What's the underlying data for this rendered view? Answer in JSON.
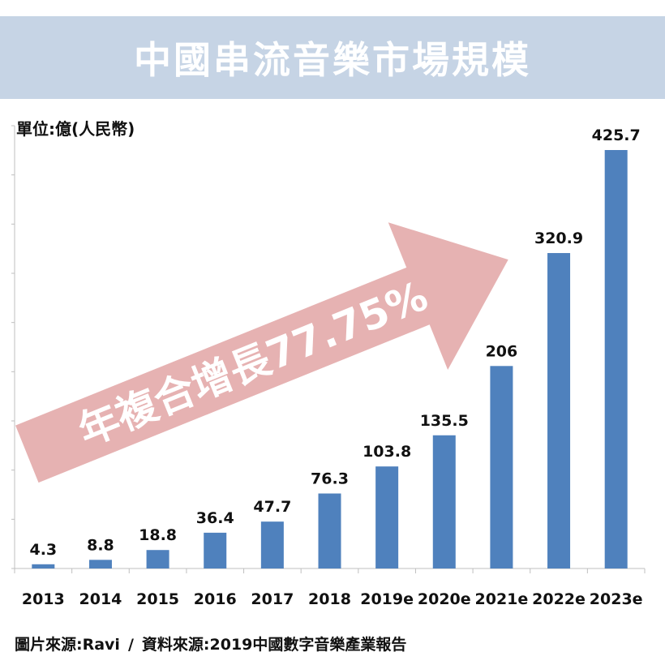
{
  "title": "中國串流音樂市場規模",
  "unit_label": "單位:億(人民幣)",
  "annotation": "年複合增長77.75%",
  "source": {
    "image_credit": "圖片來源:Ravi",
    "separator": "/",
    "data_credit": "資料來源:2019中國數字音樂產業報告"
  },
  "colors": {
    "bar": "#4f81bd",
    "title_band": "#c6d4e5",
    "arrow": "#e6b2b2"
  },
  "chart_data": {
    "type": "bar",
    "title": "中國串流音樂市場規模",
    "ylabel": "單位:億(人民幣)",
    "xlabel": "",
    "categories": [
      "2013",
      "2014",
      "2015",
      "2016",
      "2017",
      "2018",
      "2019e",
      "2020e",
      "2021e",
      "2022e",
      "2023e"
    ],
    "values": [
      4.3,
      8.8,
      18.8,
      36.4,
      47.7,
      76.3,
      103.8,
      135.5,
      206,
      320.9,
      425.7
    ],
    "value_labels": [
      "4.3",
      "8.8",
      "18.8",
      "36.4",
      "47.7",
      "76.3",
      "103.8",
      "135.5",
      "206",
      "320.9",
      "425.7"
    ],
    "ylim": [
      0,
      450
    ],
    "grid": false,
    "legend": "none",
    "annotation": "年複合增長77.75%"
  }
}
